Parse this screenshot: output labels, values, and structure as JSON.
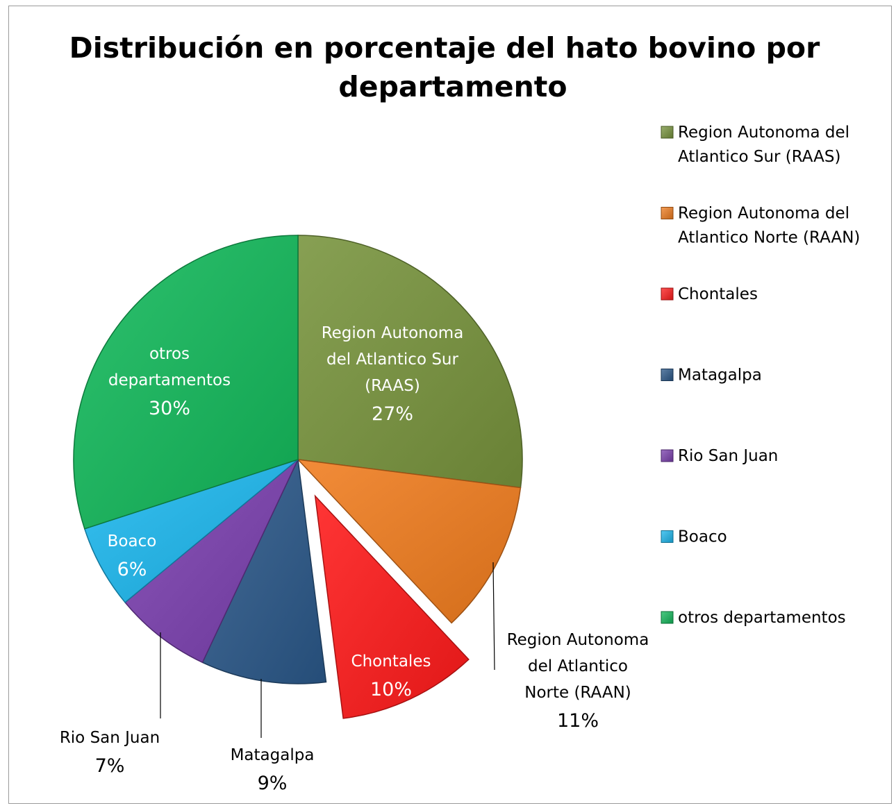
{
  "chart_data": {
    "type": "pie",
    "title": "Distribución en porcentaje del hato bovino por departamento",
    "title_lines": [
      "Distribución en porcentaje del hato bovino por",
      "departamento"
    ],
    "legend_position": "right",
    "slices": [
      {
        "name": "Region Autonoma del Atlantico Sur (RAAS)",
        "value": 27,
        "pct_label": "27%",
        "color": "#77933c",
        "legend_lines": [
          "Region Autonoma del",
          "Atlantico Sur (RAAS)"
        ],
        "label_lines": [
          "Region Autonoma",
          "del Atlantico Sur",
          "(RAAS)"
        ],
        "exploded": false
      },
      {
        "name": "Region Autonoma del Atlantico Norte (RAAN)",
        "value": 11,
        "pct_label": "11%",
        "color": "#f07c1e",
        "legend_lines": [
          "Region Autonoma del",
          "Atlantico Norte (RAAN)"
        ],
        "label_lines": [
          "Region Autonoma",
          "del Atlantico",
          "Norte (RAAN)"
        ],
        "exploded": false
      },
      {
        "name": "Chontales",
        "value": 10,
        "pct_label": "10%",
        "color": "#ff1a1a",
        "legend_lines": [
          "Chontales"
        ],
        "label_lines": [
          "Chontales"
        ],
        "exploded": true
      },
      {
        "name": "Matagalpa",
        "value": 9,
        "pct_label": "9%",
        "color": "#2a5788",
        "legend_lines": [
          "Matagalpa"
        ],
        "label_lines": [
          "Matagalpa"
        ],
        "exploded": false
      },
      {
        "name": "Rio San Juan",
        "value": 7,
        "pct_label": "7%",
        "color": "#7a3fae",
        "legend_lines": [
          "Rio San Juan"
        ],
        "label_lines": [
          "Rio San Juan"
        ],
        "exploded": false
      },
      {
        "name": "Boaco",
        "value": 6,
        "pct_label": "6%",
        "color": "#1cb7ee",
        "legend_lines": [
          "Boaco"
        ],
        "label_lines": [
          "Boaco"
        ],
        "exploded": false
      },
      {
        "name": "otros departamentos",
        "value": 30,
        "pct_label": "30%",
        "color": "#12b85a",
        "legend_lines": [
          "otros departamentos"
        ],
        "label_lines": [
          "otros",
          "departamentos"
        ],
        "exploded": false
      }
    ]
  }
}
